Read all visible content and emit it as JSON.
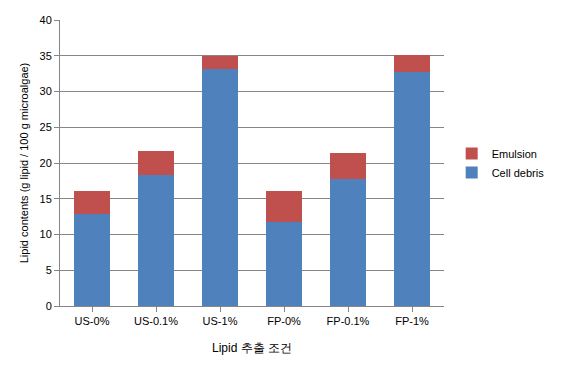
{
  "chart_data": {
    "type": "bar",
    "stacked": true,
    "x_label": "Lipid 추출 조건",
    "y_label": "Lipid contents (g lipid / 100 g microalgae)",
    "categories": [
      "US-0%",
      "US-0.1%",
      "US-1%",
      "FP-0%",
      "FP-0.1%",
      "FP-1%"
    ],
    "series": [
      {
        "name": "Cell debris",
        "color": "#4f81bd",
        "values": [
          12.8,
          18.3,
          33.2,
          11.8,
          17.8,
          32.7
        ]
      },
      {
        "name": "Emulsion",
        "color": "#c0504d",
        "values": [
          3.3,
          3.4,
          1.8,
          4.3,
          3.6,
          2.4
        ]
      }
    ],
    "ylim": [
      0,
      40
    ],
    "yticks": [
      0,
      5,
      10,
      15,
      20,
      25,
      30,
      35,
      40
    ],
    "grid": true,
    "legend": "right"
  }
}
